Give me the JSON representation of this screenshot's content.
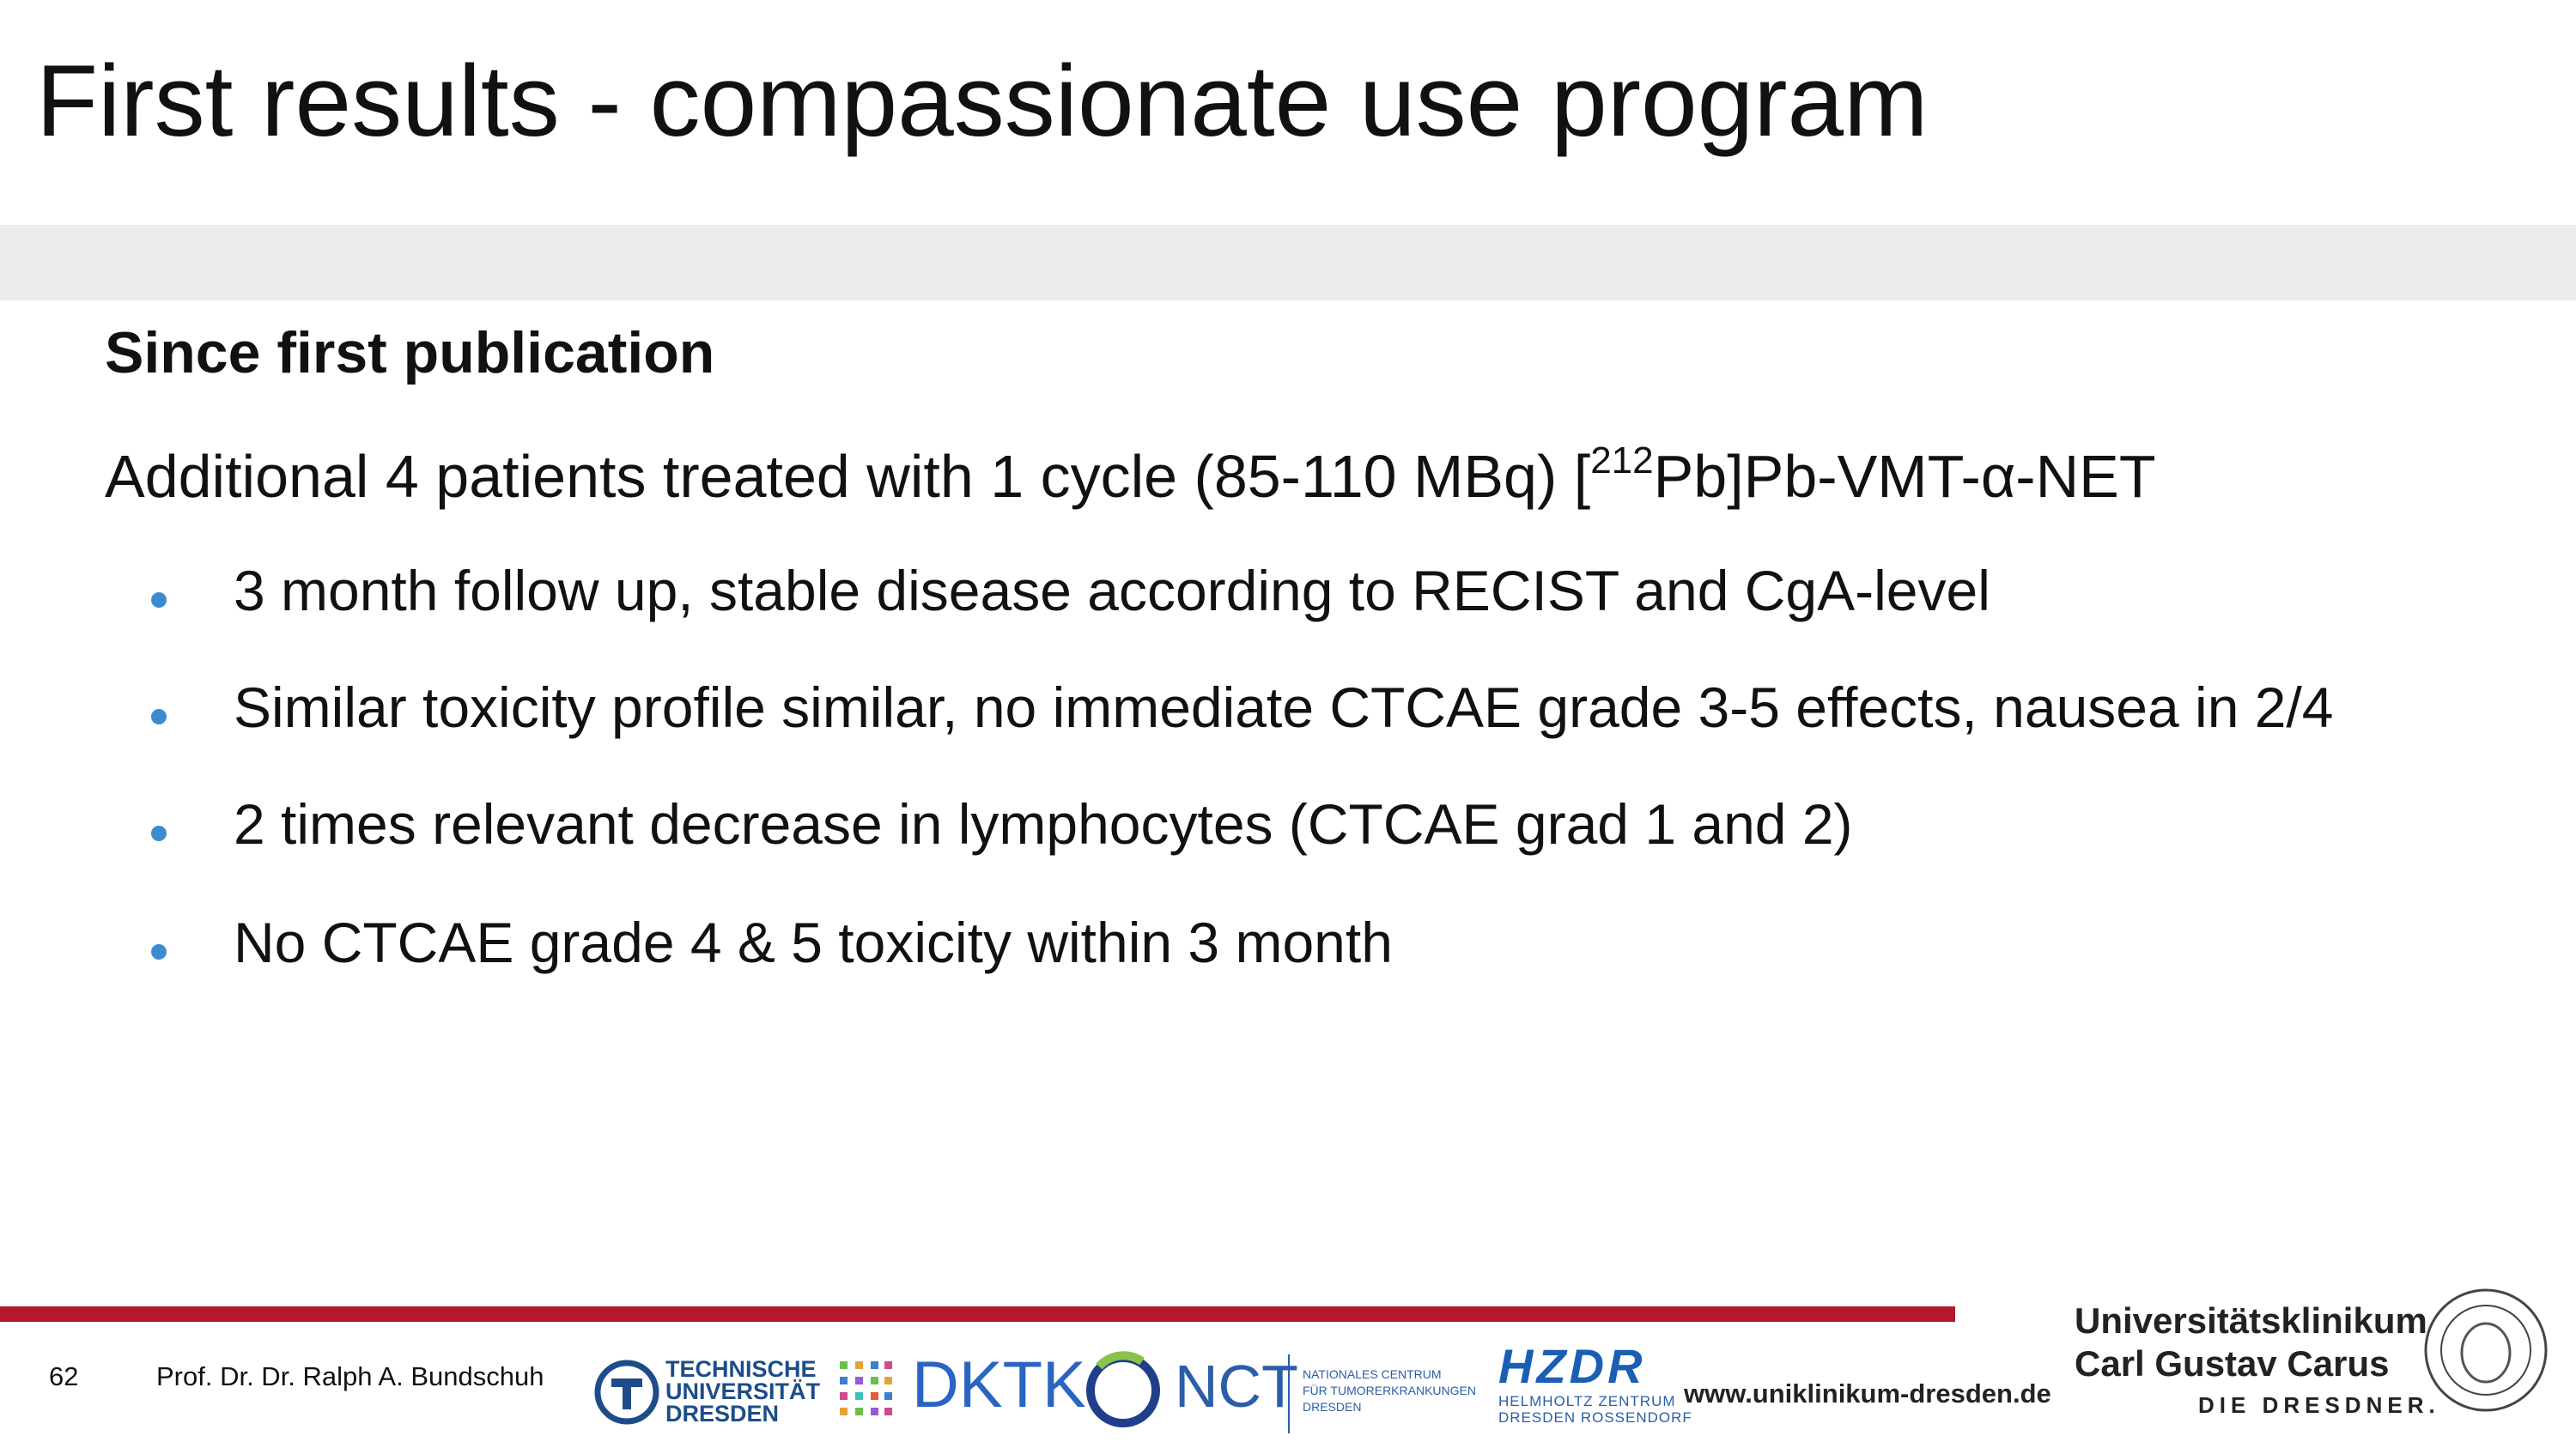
{
  "header": {
    "title": "First results - compassionate use program"
  },
  "body": {
    "heading": "Since first publication",
    "intro": {
      "before": "Additional 4 patients treated with 1 cycle (85-110 MBq) [",
      "superscript": "212",
      "after": "Pb]Pb-VMT-α-NET"
    },
    "bullets": [
      "3 month follow up, stable disease according to RECIST and CgA-level",
      "Similar toxicity profile similar, no immediate CTCAE grade 3-5 effects, nausea in 2/4",
      "2 times relevant decrease in lymphocytes (CTCAE grad 1 and 2)",
      "No CTCAE grade 4 & 5 toxicity within 3 month"
    ]
  },
  "footer": {
    "page_number": "62",
    "author": "Prof. Dr. Dr. Ralph A. Bundschuh",
    "logos": {
      "tu": [
        "TECHNISCHE",
        "UNIVERSITÄT",
        "DRESDEN"
      ],
      "dktk": "DKTK",
      "nct": "NCT",
      "nct_sub": [
        "NATIONALES CENTRUM",
        "FÜR TUMORERKRANKUNGEN",
        "DRESDEN"
      ],
      "hzdr": "HZDR",
      "hzdr_sub": [
        "HELMHOLTZ ZENTRUM",
        "DRESDEN ROSSENDORF"
      ]
    },
    "url": "www.uniklinikum-dresden.de",
    "uk": [
      "Universitätsklinikum",
      "Carl Gustav Carus",
      "DIE DRESDNER."
    ]
  }
}
